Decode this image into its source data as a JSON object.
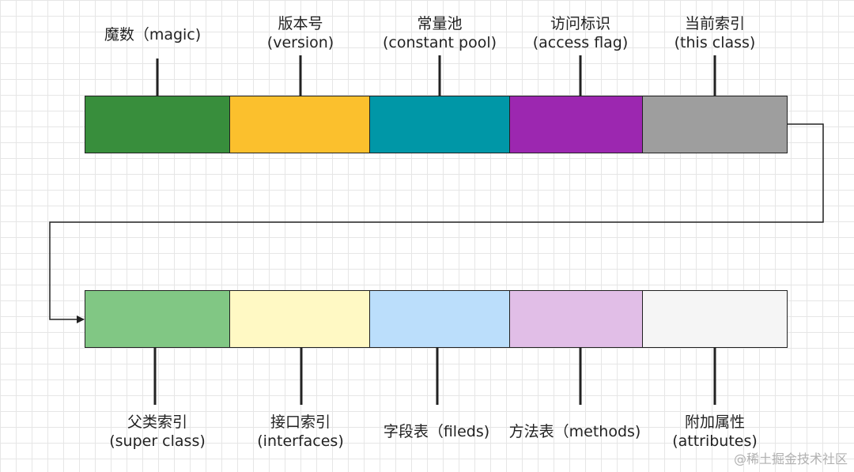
{
  "top_row": [
    {
      "lines": [
        "魔数（magic)"
      ],
      "color": "#388e3c"
    },
    {
      "lines": [
        "版本号",
        "(version)"
      ],
      "color": "#fbc02d"
    },
    {
      "lines": [
        "常量池",
        "(constant pool)"
      ],
      "color": "#0097a7"
    },
    {
      "lines": [
        "访问标识",
        "(access flag)"
      ],
      "color": "#9c27b0"
    },
    {
      "lines": [
        "当前索引",
        "(this class)"
      ],
      "color": "#9e9e9e"
    }
  ],
  "bottom_row": [
    {
      "lines": [
        "父类索引",
        "(super class)"
      ],
      "color": "#81c784"
    },
    {
      "lines": [
        "接口索引",
        "(interfaces)"
      ],
      "color": "#fff9c4"
    },
    {
      "lines": [
        "字段表（fileds)"
      ],
      "color": "#bbdefb"
    },
    {
      "lines": [
        "方法表（methods)"
      ],
      "color": "#e1bee7"
    },
    {
      "lines": [
        "附加属性",
        "(attributes)"
      ],
      "color": "#f5f5f5"
    }
  ],
  "watermark": "@稀土掘金技术社区"
}
